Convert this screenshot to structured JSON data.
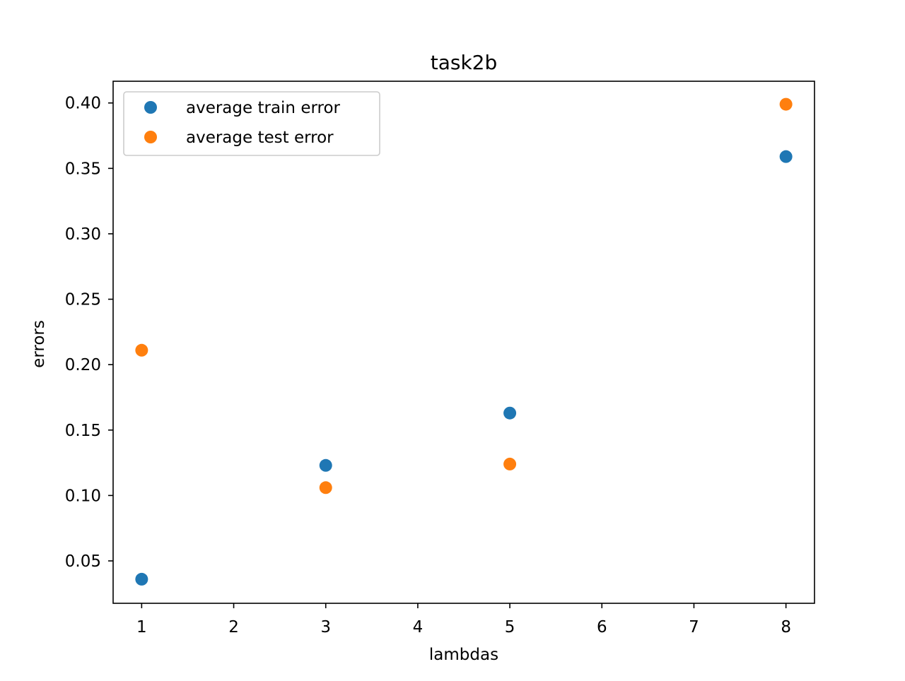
{
  "chart_data": {
    "type": "scatter",
    "title": "task2b",
    "xlabel": "lambdas",
    "ylabel": "errors",
    "xlim": [
      0.69,
      8.31
    ],
    "ylim": [
      0.0176,
      0.4166
    ],
    "xticks": [
      1,
      2,
      3,
      4,
      5,
      6,
      7,
      8
    ],
    "xtick_labels": [
      "1",
      "2",
      "3",
      "4",
      "5",
      "6",
      "7",
      "8"
    ],
    "yticks": [
      0.05,
      0.1,
      0.15,
      0.2,
      0.25,
      0.3,
      0.35,
      0.4
    ],
    "ytick_labels": [
      "0.05",
      "0.10",
      "0.15",
      "0.20",
      "0.25",
      "0.30",
      "0.35",
      "0.40"
    ],
    "grid": false,
    "legend_position": "upper-left",
    "series": [
      {
        "name": "average train error",
        "color": "#1f77b4",
        "x": [
          1,
          3,
          5,
          8
        ],
        "y": [
          0.036,
          0.123,
          0.163,
          0.359
        ]
      },
      {
        "name": "average test error",
        "color": "#ff7f0e",
        "x": [
          1,
          3,
          5,
          8
        ],
        "y": [
          0.211,
          0.106,
          0.124,
          0.399
        ]
      }
    ]
  }
}
